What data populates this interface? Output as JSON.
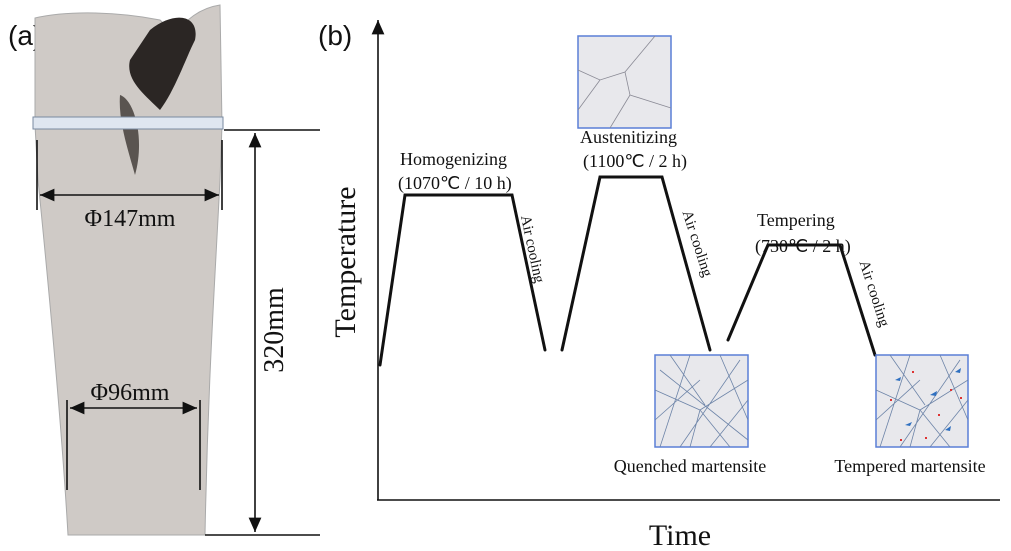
{
  "panel_a": {
    "label": "(a)",
    "diameter_top": "Φ147mm",
    "diameter_bottom": "Φ96mm",
    "height": "320mm"
  },
  "panel_b": {
    "label": "(b)",
    "y_axis": "Temperature",
    "x_axis": "Time",
    "stages": [
      {
        "name": "Homogenizing",
        "condition": "(1070℃ / 10 h)",
        "cooling": "Air cooling"
      },
      {
        "name": "Austenitizing",
        "condition": "(1100℃ / 2 h)",
        "cooling": "Air cooling"
      },
      {
        "name": "Tempering",
        "condition": "(730℃ / 2 h)",
        "cooling": "Air cooling"
      }
    ],
    "micrographs": [
      "Quenched martensite",
      "Tempered martensite"
    ]
  }
}
